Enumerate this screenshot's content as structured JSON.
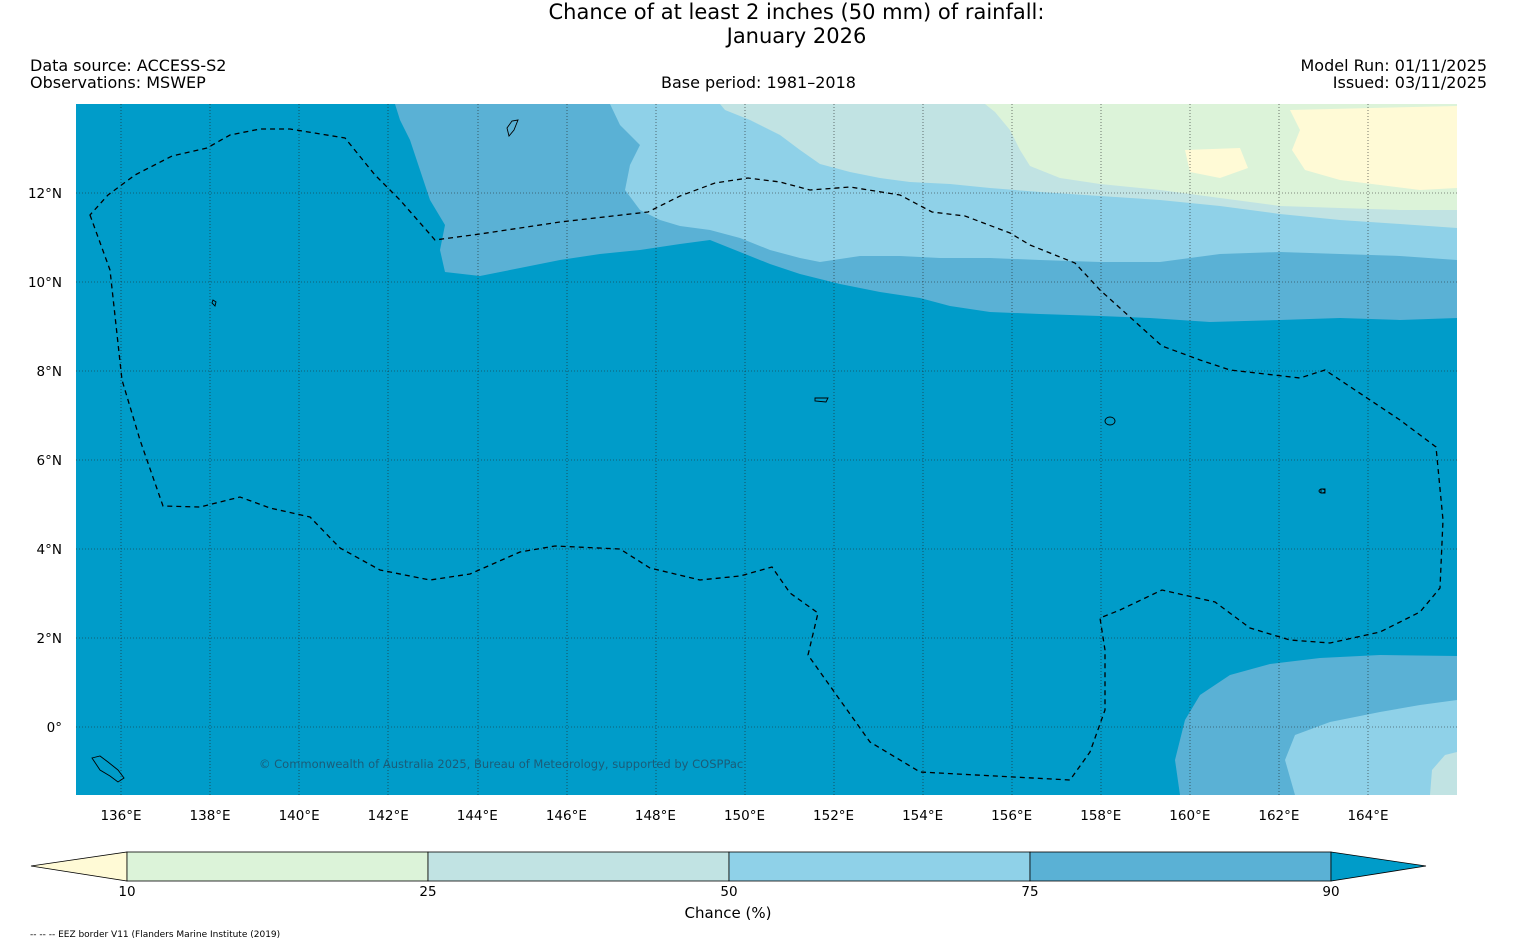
{
  "title": {
    "line1": "Chance of at least 2 inches (50  mm) of rainfall:",
    "line2": "January 2026"
  },
  "header": {
    "data_source": "Data source: ACCESS-S2",
    "observations": "Observations: MSWEP",
    "base_period": "Base period: 1981–2018",
    "model_run": "Model Run: 01/11/2025",
    "issued": "Issued: 03/11/2025"
  },
  "map": {
    "lon_range": [
      135,
      166
    ],
    "lat_range": [
      -1.5,
      14
    ],
    "lon_ticks": [
      "136°E",
      "138°E",
      "140°E",
      "142°E",
      "144°E",
      "146°E",
      "148°E",
      "150°E",
      "152°E",
      "154°E",
      "156°E",
      "158°E",
      "160°E",
      "162°E",
      "164°E"
    ],
    "lat_ticks": [
      "12°N",
      "10°N",
      "8°N",
      "6°N",
      "4°N",
      "2°N",
      "0°"
    ],
    "copyright": "© Commonwealth of Australia 2025, Bureau of Meteorology, supported by COSPPac"
  },
  "legend": {
    "label": "Chance (%)",
    "ticks": [
      "10",
      "25",
      "50",
      "75",
      "90"
    ],
    "colors": [
      "#fffad6",
      "#dcf3d9",
      "#c1e3e3",
      "#8fd1e8",
      "#5ab1d5",
      "#009cc9"
    ]
  },
  "footnote": "-- -- -- EEZ border V11 (Flanders Marine Institute (2019)"
}
